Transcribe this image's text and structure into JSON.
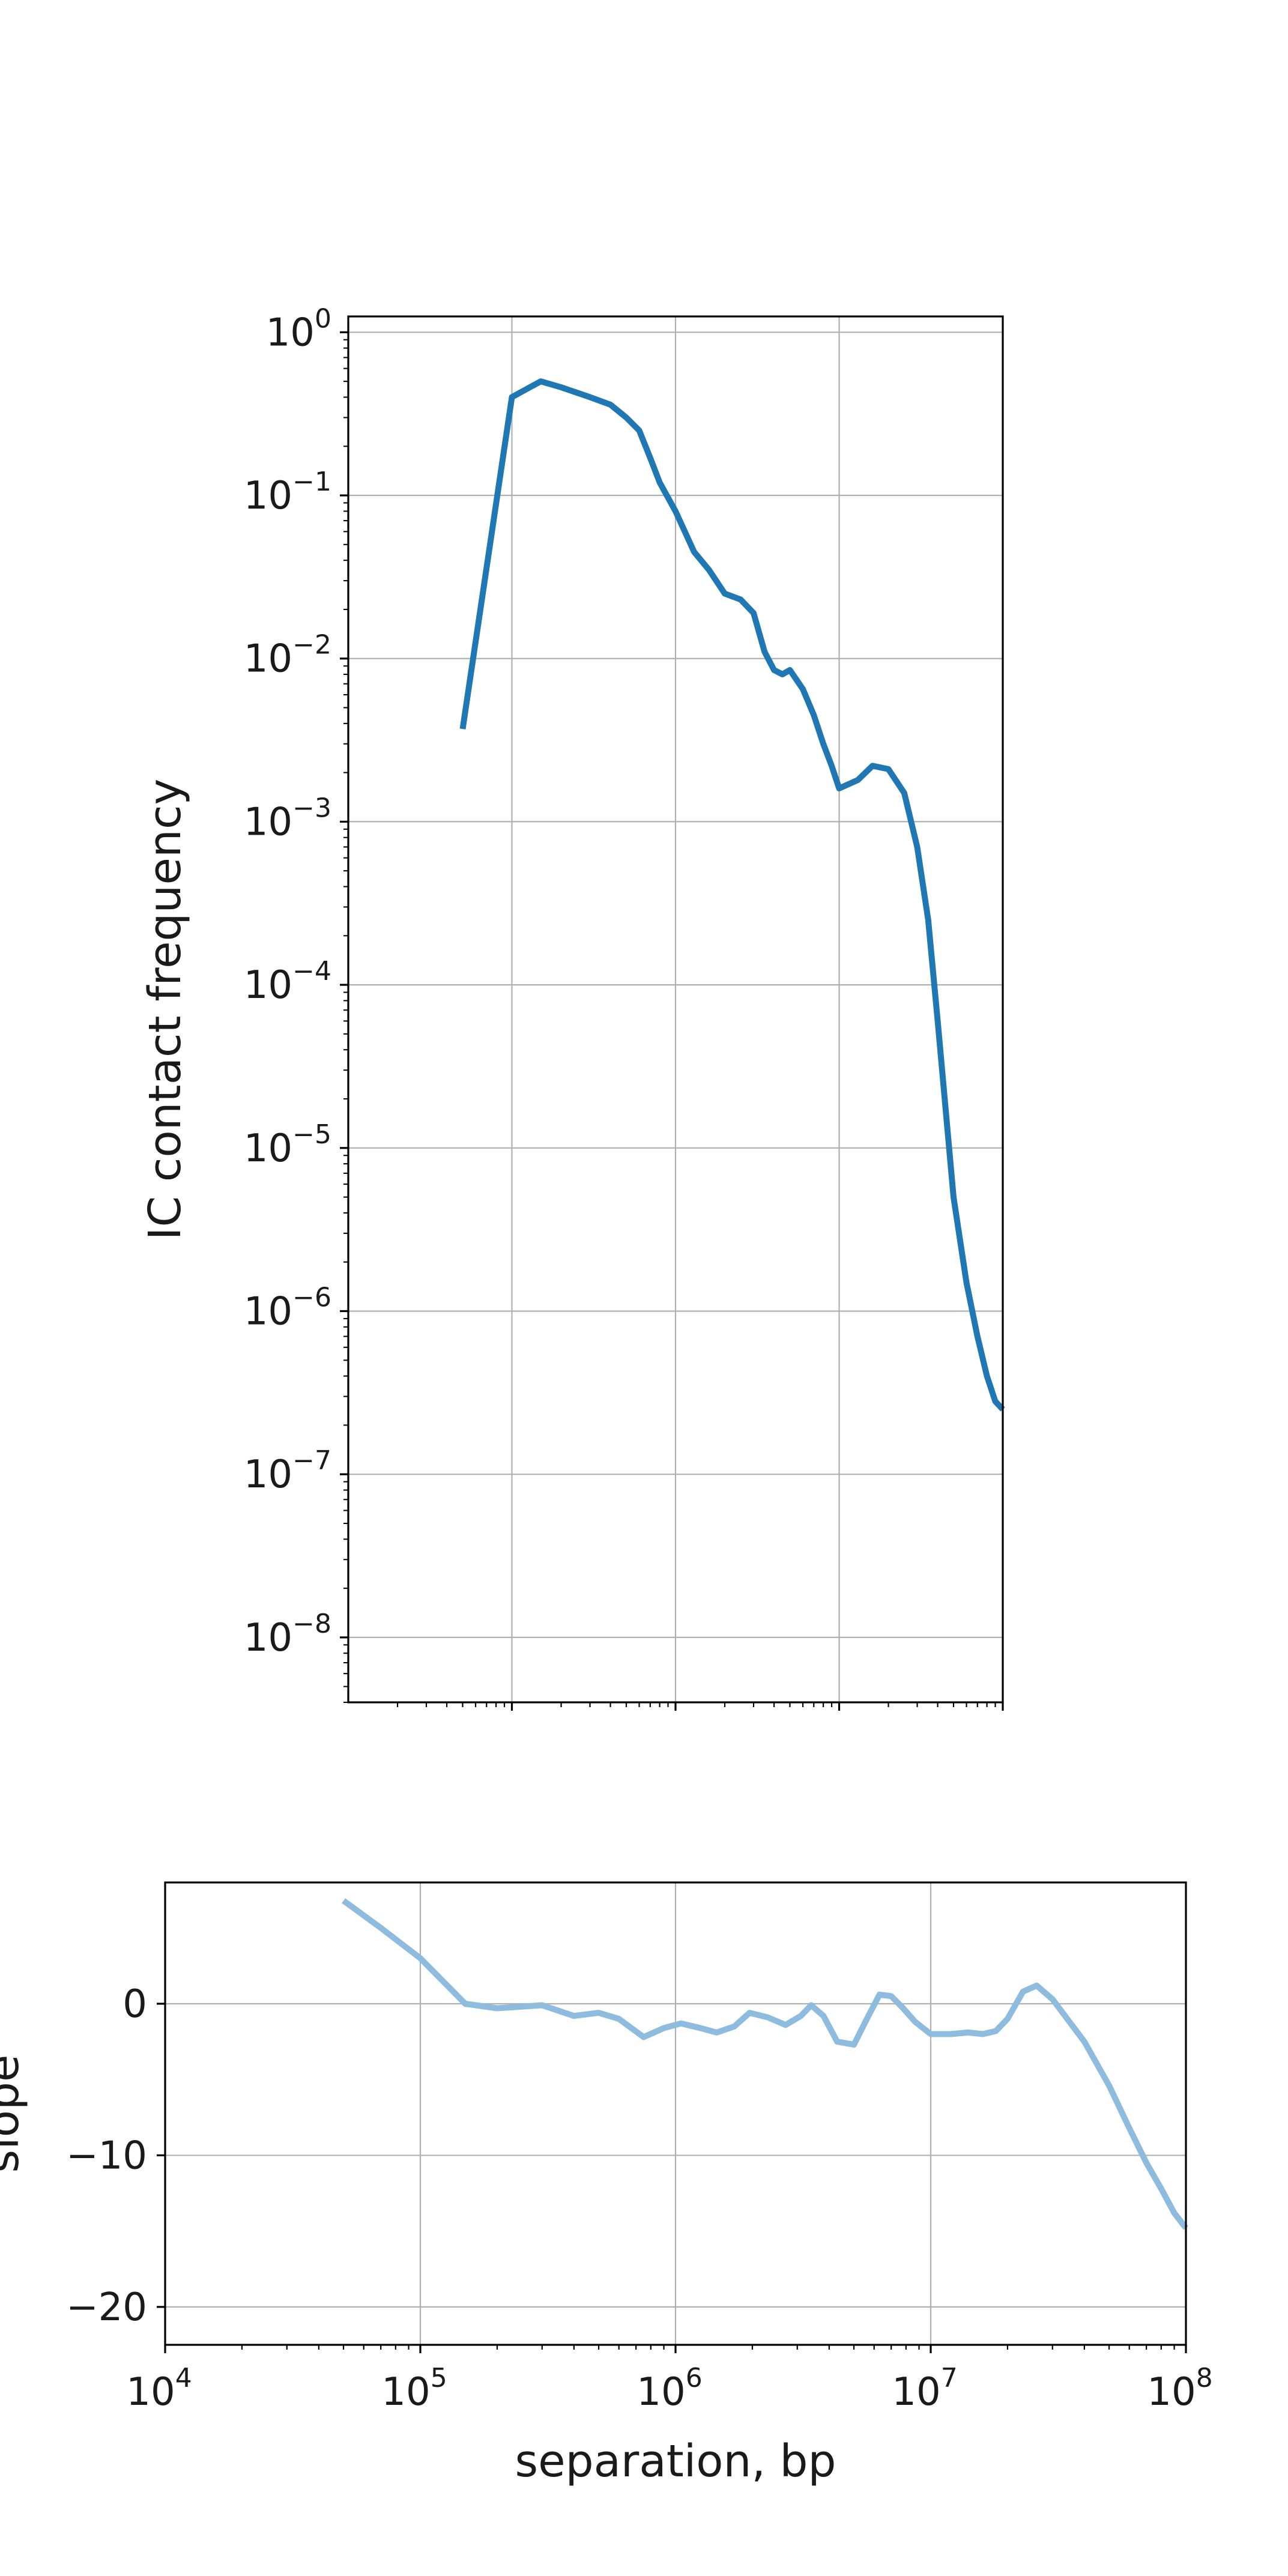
{
  "chart_data": [
    {
      "id": "contact-frequency",
      "type": "line",
      "title": "",
      "xlabel": "",
      "ylabel": "IC contact frequency",
      "xscale": "log",
      "yscale": "log",
      "xlim": [
        10000,
        100000000
      ],
      "ylim": [
        4e-09,
        1.25
      ],
      "grid": true,
      "legend": "none",
      "color": "#1f77b4",
      "x_ticks_visible": [
        100000,
        1000000,
        10000000,
        100000000
      ],
      "x_tick_labels_visible": false,
      "y_ticks": [
        1,
        0.1,
        0.01,
        0.001,
        0.0001,
        1e-05,
        1e-06,
        1e-07,
        1e-08
      ],
      "y_tick_labels": [
        {
          "base": "10",
          "exp": "0"
        },
        {
          "base": "10",
          "exp": "−1"
        },
        {
          "base": "10",
          "exp": "−2"
        },
        {
          "base": "10",
          "exp": "−3"
        },
        {
          "base": "10",
          "exp": "−4"
        },
        {
          "base": "10",
          "exp": "−5"
        },
        {
          "base": "10",
          "exp": "−6"
        },
        {
          "base": "10",
          "exp": "−7"
        },
        {
          "base": "10",
          "exp": "−8"
        }
      ],
      "series": [
        {
          "x": [
            50000,
            100000,
            150000,
            200000,
            300000,
            400000,
            500000,
            600000,
            700000,
            800000,
            1000000,
            1300000,
            1600000,
            2000000,
            2500000,
            3000000,
            3500000,
            4000000,
            4500000,
            5000000,
            6000000,
            7000000,
            8000000,
            9000000,
            10000000,
            13000000,
            16000000,
            20000000,
            25000000,
            30000000,
            35000000,
            40000000,
            50000000,
            60000000,
            70000000,
            80000000,
            90000000,
            100000000
          ],
          "y": [
            0.0037,
            0.4,
            0.5,
            0.46,
            0.4,
            0.36,
            0.3,
            0.25,
            0.17,
            0.12,
            0.08,
            0.045,
            0.035,
            0.025,
            0.023,
            0.019,
            0.011,
            0.0085,
            0.008,
            0.0085,
            0.0065,
            0.0045,
            0.003,
            0.0022,
            0.0016,
            0.0018,
            0.0022,
            0.0021,
            0.0015,
            0.0007,
            0.00025,
            6e-05,
            5e-06,
            1.5e-06,
            7e-07,
            4e-07,
            2.8e-07,
            2.5e-07
          ]
        }
      ]
    },
    {
      "id": "slope",
      "type": "line",
      "title": "",
      "xlabel": "separation, bp",
      "ylabel": "slope",
      "xscale": "log",
      "yscale": "linear",
      "xlim": [
        10000,
        100000000
      ],
      "ylim": [
        -22.5,
        8
      ],
      "grid": true,
      "legend": "none",
      "color": "#8dbcde",
      "x_ticks": [
        10000,
        100000,
        1000000,
        10000000,
        100000000
      ],
      "x_tick_labels": [
        {
          "base": "10",
          "exp": "4"
        },
        {
          "base": "10",
          "exp": "5"
        },
        {
          "base": "10",
          "exp": "6"
        },
        {
          "base": "10",
          "exp": "7"
        },
        {
          "base": "10",
          "exp": "8"
        }
      ],
      "y_ticks": [
        0,
        -10,
        -20
      ],
      "y_tick_labels": [
        "0",
        "−10",
        "−20"
      ],
      "series": [
        {
          "x": [
            50000,
            70000,
            100000,
            150000,
            200000,
            300000,
            400000,
            500000,
            600000,
            750000,
            900000,
            1050000,
            1250000,
            1450000,
            1700000,
            1950000,
            2300000,
            2700000,
            3100000,
            3400000,
            3800000,
            4300000,
            5000000,
            5700000,
            6300000,
            7000000,
            7800000,
            8700000,
            10000000,
            12000000,
            14000000,
            16000000,
            18000000,
            20000000,
            23000000,
            26000000,
            30000000,
            35000000,
            40000000,
            50000000,
            60000000,
            70000000,
            80000000,
            90000000,
            100000000
          ],
          "y": [
            6.8,
            5.0,
            3.0,
            0.0,
            -0.3,
            -0.1,
            -0.8,
            -0.6,
            -1.0,
            -2.2,
            -1.6,
            -1.3,
            -1.6,
            -1.9,
            -1.5,
            -0.6,
            -0.9,
            -1.4,
            -0.8,
            -0.1,
            -0.8,
            -2.5,
            -2.7,
            -0.8,
            0.6,
            0.5,
            -0.3,
            -1.2,
            -2.0,
            -2.0,
            -1.9,
            -2.0,
            -1.8,
            -1.0,
            0.8,
            1.2,
            0.3,
            -1.2,
            -2.5,
            -5.4,
            -8.2,
            -10.5,
            -12.2,
            -13.8,
            -14.8
          ]
        }
      ]
    }
  ]
}
